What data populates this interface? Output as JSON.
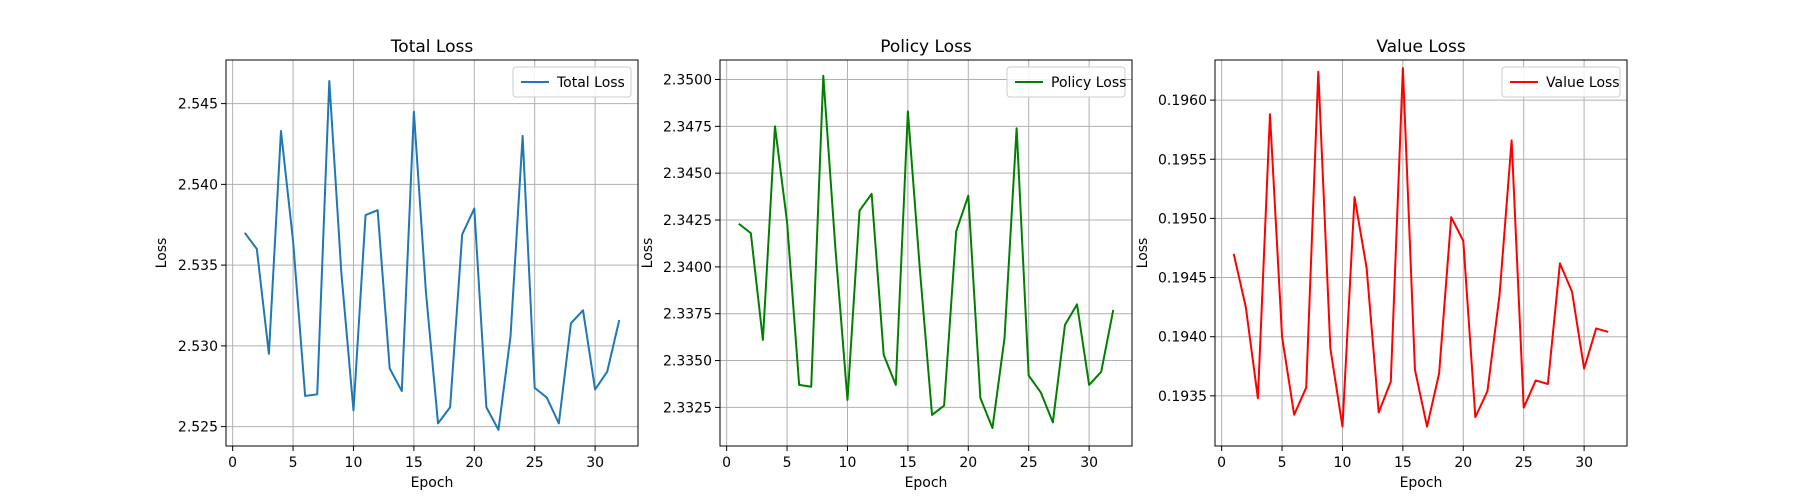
{
  "chart_data": [
    {
      "type": "line",
      "title": "Total Loss",
      "xlabel": "Epoch",
      "ylabel": "Loss",
      "xlim": [
        -0.55,
        33.55
      ],
      "ylim": [
        2.5238,
        2.5477
      ],
      "xticks": [
        0,
        5,
        10,
        15,
        20,
        25,
        30
      ],
      "yticks": [
        2.525,
        2.53,
        2.535,
        2.54,
        2.545
      ],
      "ytick_labels": [
        "2.525",
        "2.530",
        "2.535",
        "2.540",
        "2.545"
      ],
      "grid": true,
      "legend_position": "top-right",
      "series": [
        {
          "name": "Total Loss",
          "color": "#1f77b4",
          "x": [
            1,
            2,
            3,
            4,
            5,
            6,
            7,
            8,
            9,
            10,
            11,
            12,
            13,
            14,
            15,
            16,
            17,
            18,
            19,
            20,
            21,
            22,
            23,
            24,
            25,
            26,
            27,
            28,
            29,
            30,
            31,
            32
          ],
          "values": [
            2.537,
            2.536,
            2.5295,
            2.5433,
            2.5365,
            2.5269,
            2.527,
            2.5464,
            2.5345,
            2.526,
            2.5381,
            2.5384,
            2.5286,
            2.5272,
            2.5445,
            2.5333,
            2.5252,
            2.5262,
            2.5369,
            2.5385,
            2.5262,
            2.5248,
            2.5306,
            2.543,
            2.5274,
            2.5268,
            2.5252,
            2.5314,
            2.5322,
            2.5273,
            2.5284,
            2.5316
          ]
        }
      ]
    },
    {
      "type": "line",
      "title": "Policy Loss",
      "xlabel": "Epoch",
      "ylabel": "Loss",
      "xlim": [
        -0.55,
        33.55
      ],
      "ylim": [
        2.33044,
        2.35104
      ],
      "xticks": [
        0,
        5,
        10,
        15,
        20,
        25,
        30
      ],
      "yticks": [
        2.3325,
        2.335,
        2.3375,
        2.34,
        2.3425,
        2.345,
        2.3475,
        2.35
      ],
      "ytick_labels": [
        "2.3325",
        "2.3350",
        "2.3375",
        "2.3400",
        "2.3425",
        "2.3450",
        "2.3475",
        "2.3500"
      ],
      "grid": true,
      "legend_position": "top-right",
      "series": [
        {
          "name": "Policy Loss",
          "color": "#008000",
          "x": [
            1,
            2,
            3,
            4,
            5,
            6,
            7,
            8,
            9,
            10,
            11,
            12,
            13,
            14,
            15,
            16,
            17,
            18,
            19,
            20,
            21,
            22,
            23,
            24,
            25,
            26,
            27,
            28,
            29,
            30,
            31,
            32
          ],
          "values": [
            2.3423,
            2.3418,
            2.3361,
            2.3475,
            2.3424,
            2.3337,
            2.3336,
            2.3502,
            2.341,
            2.3329,
            2.343,
            2.3439,
            2.3353,
            2.3337,
            2.3483,
            2.3398,
            2.3321,
            2.3326,
            2.3419,
            2.3438,
            2.333,
            2.3314,
            2.3362,
            2.3474,
            2.3342,
            2.3333,
            2.3317,
            2.3369,
            2.338,
            2.3337,
            2.3344,
            2.3377
          ]
        }
      ]
    },
    {
      "type": "line",
      "title": "Value Loss",
      "xlabel": "Epoch",
      "ylabel": "Loss",
      "xlim": [
        -0.55,
        33.55
      ],
      "ylim": [
        0.193076,
        0.196339
      ],
      "xticks": [
        0,
        5,
        10,
        15,
        20,
        25,
        30
      ],
      "yticks": [
        0.1935,
        0.194,
        0.1945,
        0.195,
        0.1955,
        0.196
      ],
      "ytick_labels": [
        "0.1935",
        "0.1940",
        "0.1945",
        "0.1950",
        "0.1955",
        "0.1960"
      ],
      "grid": true,
      "legend_position": "top-right",
      "series": [
        {
          "name": "Value Loss",
          "color": "#ff0000",
          "x": [
            1,
            2,
            3,
            4,
            5,
            6,
            7,
            8,
            9,
            10,
            11,
            12,
            13,
            14,
            15,
            16,
            17,
            18,
            19,
            20,
            21,
            22,
            23,
            24,
            25,
            26,
            27,
            28,
            29,
            30,
            31,
            32
          ],
          "values": [
            0.1947,
            0.19425,
            0.19348,
            0.19588,
            0.194,
            0.19334,
            0.19357,
            0.19624,
            0.1939,
            0.19324,
            0.19518,
            0.19458,
            0.19336,
            0.19362,
            0.19627,
            0.19372,
            0.19324,
            0.19369,
            0.19501,
            0.19481,
            0.19332,
            0.19354,
            0.19435,
            0.19566,
            0.1934,
            0.19363,
            0.1936,
            0.19462,
            0.19438,
            0.19373,
            0.19407,
            0.19404
          ]
        }
      ]
    }
  ]
}
